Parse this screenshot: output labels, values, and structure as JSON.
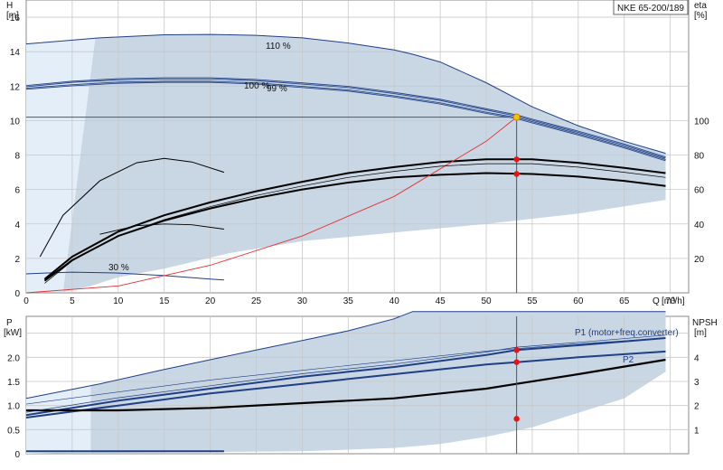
{
  "chart_data": [
    {
      "type": "line",
      "name": "Q-H and efficiency",
      "legend_box": "NKE 65-200/189",
      "ylabel_left": "H",
      "ylabel_left_unit": "[m]",
      "ylabel_right": "eta",
      "ylabel_right_unit": "[%]",
      "xlabel": "Q",
      "xlabel_unit": "[m³/h]",
      "xlim": [
        0,
        72
      ],
      "ylim": [
        0,
        17
      ],
      "y_right_lim": [
        0,
        170
      ],
      "x_ticks": [
        "0",
        "5",
        "10",
        "15",
        "20",
        "25",
        "30",
        "35",
        "40",
        "45",
        "50",
        "55",
        "60",
        "65",
        "70"
      ],
      "y_ticks": [
        "0",
        "2",
        "4",
        "6",
        "8",
        "10",
        "12",
        "14",
        "16"
      ],
      "y_right_ticks": [
        "20",
        "40",
        "60",
        "80",
        "100"
      ],
      "grid": true,
      "duty_point": {
        "Q": 53.3,
        "H": 10.2,
        "eta_100": 77.5,
        "eta_99": 69
      },
      "curve_labels": {
        "c110": "110 %",
        "c100": "100 %",
        "c99": "99 %",
        "c30": "30 %"
      },
      "series": [
        {
          "name": "110 %",
          "color": "#1f3f86",
          "x": [
            0,
            8,
            15,
            20,
            25,
            30,
            35,
            40,
            42,
            45,
            50,
            55,
            60,
            65,
            69.5
          ],
          "values": [
            14.45,
            14.8,
            14.98,
            15.0,
            14.95,
            14.8,
            14.5,
            14.1,
            13.85,
            13.4,
            12.2,
            10.8,
            9.7,
            8.8,
            8.1
          ]
        },
        {
          "name": "100 %",
          "color": "#1f3f86",
          "x": [
            0,
            5,
            10,
            15,
            20,
            25,
            30,
            35,
            40,
            45,
            50,
            53.3,
            55,
            60,
            65,
            69.5
          ],
          "values": [
            12.0,
            12.25,
            12.4,
            12.45,
            12.45,
            12.35,
            12.15,
            11.95,
            11.6,
            11.2,
            10.65,
            10.3,
            10.05,
            9.35,
            8.6,
            7.85
          ]
        },
        {
          "name": "99 %",
          "color": "#1f3f86",
          "x": [
            0,
            5,
            10,
            15,
            20,
            25,
            30,
            35,
            40,
            45,
            50,
            53.3,
            55,
            60,
            65,
            69.5
          ],
          "values": [
            11.85,
            12.05,
            12.2,
            12.25,
            12.25,
            12.15,
            11.95,
            11.75,
            11.4,
            11.0,
            10.45,
            10.15,
            9.9,
            9.2,
            8.45,
            7.7
          ]
        },
        {
          "name": "30 %",
          "color": "#1f3f86",
          "x": [
            0,
            2,
            5,
            10,
            15,
            20,
            21.5
          ],
          "values": [
            1.1,
            1.15,
            1.2,
            1.15,
            1.0,
            0.8,
            0.75
          ]
        },
        {
          "name": "eta 100 %",
          "color": "#000000",
          "x": [
            2,
            5,
            10,
            15,
            20,
            25,
            30,
            35,
            40,
            45,
            50,
            55,
            60,
            65,
            69.5
          ],
          "values": [
            0.8,
            2.1,
            3.55,
            4.5,
            5.25,
            5.9,
            6.45,
            6.95,
            7.3,
            7.6,
            7.75,
            7.75,
            7.55,
            7.25,
            6.95
          ]
        },
        {
          "name": "eta 99 %",
          "color": "#000000",
          "x": [
            2,
            5,
            10,
            15,
            20,
            25,
            30,
            35,
            40,
            45,
            50,
            55,
            60,
            65,
            69.5
          ],
          "values": [
            0.7,
            1.9,
            3.3,
            4.2,
            4.9,
            5.5,
            6.0,
            6.4,
            6.7,
            6.85,
            6.95,
            6.9,
            6.75,
            6.5,
            6.2
          ]
        },
        {
          "name": "eta 30 %",
          "color": "#000000",
          "x": [
            1.5,
            4,
            8,
            12,
            15,
            18,
            21.5
          ],
          "values": [
            2.1,
            4.5,
            6.5,
            7.55,
            7.8,
            7.6,
            7.0
          ]
        },
        {
          "name": "system curve",
          "color": "#e53030",
          "x": [
            0,
            10,
            20,
            30,
            40,
            50,
            53.3
          ],
          "values": [
            0,
            0.4,
            1.6,
            3.3,
            5.6,
            8.8,
            10.2
          ]
        }
      ]
    },
    {
      "type": "line",
      "name": "Power and NPSH",
      "ylabel_left": "P",
      "ylabel_left_unit": "[kW]",
      "ylabel_right": "NPSH",
      "ylabel_right_unit": "[m]",
      "xlim": [
        0,
        72
      ],
      "ylim": [
        0,
        2.85
      ],
      "y_right_lim": [
        0,
        5.7
      ],
      "y_ticks": [
        "0",
        "0.5",
        "1.0",
        "1.5",
        "2.0"
      ],
      "y_right_ticks": [
        "1",
        "2",
        "3",
        "4"
      ],
      "grid": true,
      "curve_labels": {
        "p1": "P1 (motor+freq.converter)",
        "p2": "P2"
      },
      "duty_point": {
        "Q": 53.3,
        "P1": 2.15,
        "P2": 1.9,
        "NPSH": 1.45
      },
      "series": [
        {
          "name": "P1 110 %",
          "color": "#1f3f86",
          "x": [
            0,
            8,
            15,
            20,
            25,
            30,
            35,
            40,
            42,
            69.5
          ],
          "values": [
            1.15,
            1.45,
            1.75,
            1.95,
            2.15,
            2.35,
            2.55,
            2.8,
            2.95,
            2.95
          ]
        },
        {
          "name": "P1",
          "color": "#1f3f86",
          "x": [
            0,
            10,
            20,
            30,
            40,
            50,
            53.3,
            60,
            69.5
          ],
          "values": [
            0.8,
            1.1,
            1.35,
            1.6,
            1.8,
            2.05,
            2.15,
            2.25,
            2.4
          ]
        },
        {
          "name": "P2",
          "color": "#1f3f86",
          "x": [
            0,
            10,
            20,
            30,
            40,
            50,
            53.3,
            60,
            69.5
          ],
          "values": [
            0.75,
            1.0,
            1.25,
            1.45,
            1.65,
            1.85,
            1.9,
            2.0,
            2.12
          ]
        },
        {
          "name": "P 30 %",
          "color": "#1f3f86",
          "x": [
            0,
            21.5
          ],
          "values": [
            0.05,
            0.05
          ]
        },
        {
          "name": "NPSH",
          "color": "#000000",
          "x": [
            0,
            10,
            20,
            30,
            40,
            50,
            53.3,
            60,
            69.5
          ],
          "values": [
            0.9,
            0.9,
            0.95,
            1.05,
            1.15,
            1.35,
            1.45,
            1.65,
            1.95
          ]
        }
      ]
    }
  ]
}
